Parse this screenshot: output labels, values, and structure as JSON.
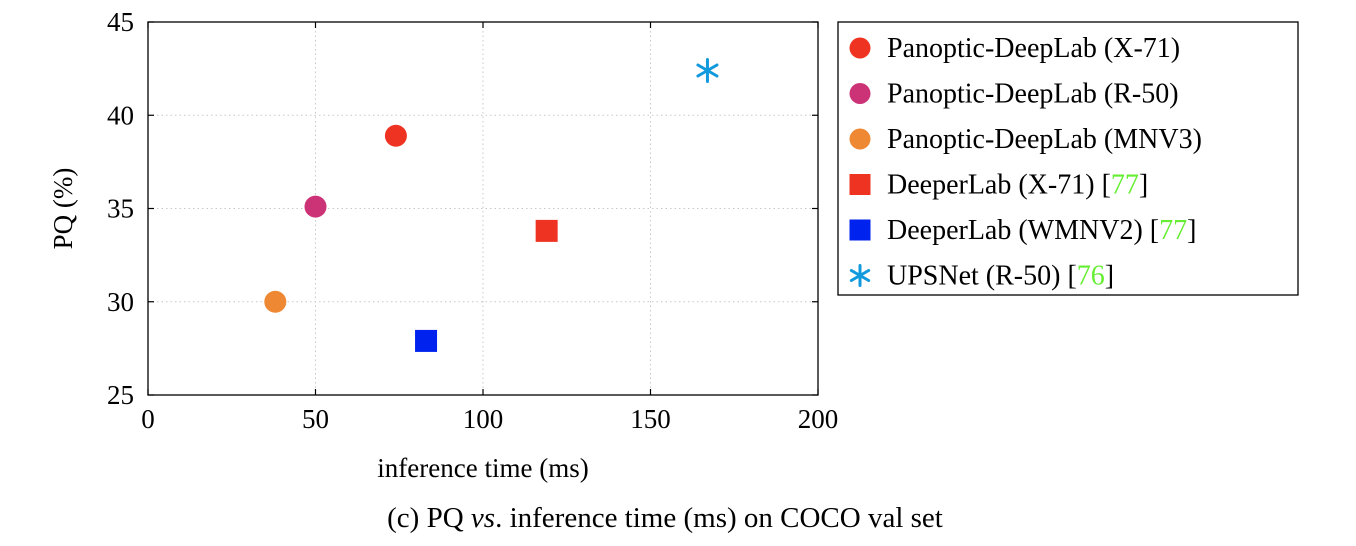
{
  "caption": {
    "prefix": "(c) PQ ",
    "vs": "vs",
    "suffix": ". inference time (ms) on COCO val set"
  },
  "colors": {
    "red": "#ee3322",
    "magenta": "#cc3377",
    "orange": "#ee8833",
    "blue": "#0022ee",
    "cyan": "#1199dd",
    "citation": "#66ee33"
  },
  "chart_data": {
    "type": "scatter",
    "xlabel": "inference time (ms)",
    "ylabel": "PQ (%)",
    "xlim": [
      0,
      200
    ],
    "ylim": [
      25,
      45
    ],
    "xticks": [
      0,
      50,
      100,
      150,
      200
    ],
    "yticks": [
      25,
      30,
      35,
      40,
      45
    ],
    "grid": true,
    "legend_position": "outside-right",
    "series": [
      {
        "name": "Panoptic-DeepLab (X-71)",
        "cite": "",
        "marker": "circle",
        "color": "#ee3322",
        "x": 74,
        "y": 38.9
      },
      {
        "name": "Panoptic-DeepLab (R-50)",
        "cite": "",
        "marker": "circle",
        "color": "#cc3377",
        "x": 50,
        "y": 35.1
      },
      {
        "name": "Panoptic-DeepLab (MNV3)",
        "cite": "",
        "marker": "circle",
        "color": "#ee8833",
        "x": 38,
        "y": 30.0
      },
      {
        "name": "DeeperLab (X-71) ",
        "cite": "77",
        "marker": "square",
        "color": "#ee3322",
        "x": 119,
        "y": 33.8
      },
      {
        "name": "DeeperLab (WMNV2) ",
        "cite": "77",
        "marker": "square",
        "color": "#0022ee",
        "x": 83,
        "y": 27.9
      },
      {
        "name": "UPSNet (R-50) ",
        "cite": "76",
        "marker": "star",
        "color": "#1199dd",
        "x": 167,
        "y": 42.4
      }
    ]
  }
}
